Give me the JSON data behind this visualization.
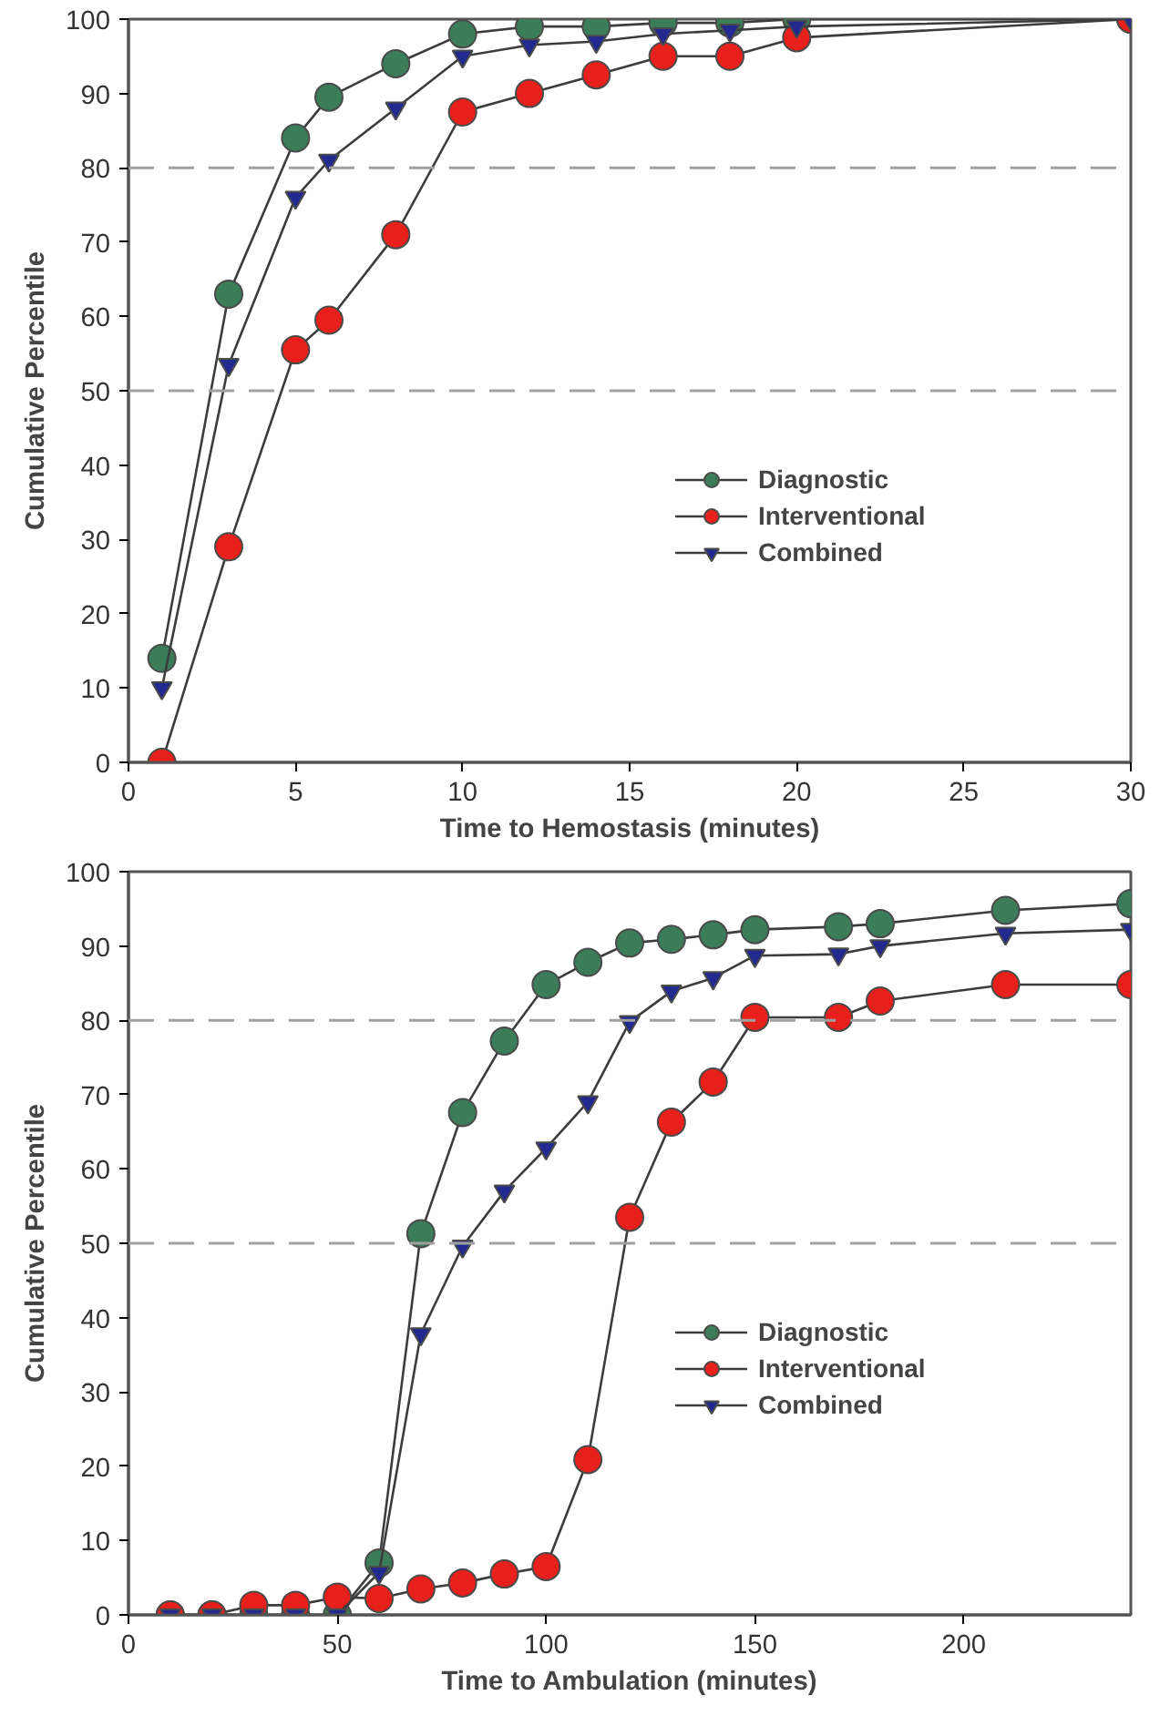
{
  "chart_data": [
    {
      "type": "line",
      "xlabel": "Time to Hemostasis (minutes)",
      "ylabel": "Cumulative Percentile",
      "x": [
        1,
        3,
        5,
        6,
        8,
        10,
        12,
        14,
        16,
        18,
        20,
        30
      ],
      "series": [
        {
          "name": "Diagnostic",
          "color": "#3b7d58",
          "marker": "circle",
          "values": [
            14,
            63,
            84,
            89.5,
            94,
            98,
            99,
            99,
            99.5,
            99.5,
            100,
            100
          ]
        },
        {
          "name": "Interventional",
          "color": "#e8201c",
          "marker": "circle",
          "values": [
            0,
            29,
            55.5,
            59.5,
            71,
            87.5,
            90,
            92.5,
            95,
            95,
            97.5,
            100
          ]
        },
        {
          "name": "Combined",
          "color": "#232a8f",
          "marker": "triangle_down",
          "values": [
            10,
            53.5,
            76,
            81,
            88,
            95,
            96.5,
            97,
            98,
            98.5,
            99,
            100
          ]
        }
      ],
      "xlim": [
        0,
        30
      ],
      "xticks": [
        0,
        5,
        10,
        15,
        20,
        25,
        30
      ],
      "ylim": [
        0,
        100
      ],
      "yticks": [
        0,
        10,
        20,
        30,
        40,
        50,
        60,
        70,
        80,
        90,
        100
      ],
      "ref_lines": [
        {
          "axis": "y",
          "value": 50,
          "color": "#a0a0a0",
          "line_style": "dashed"
        },
        {
          "axis": "y",
          "value": 80,
          "color": "#a0a0a0",
          "line_style": "dashed"
        }
      ],
      "grid": false,
      "legend": "right",
      "line_style": "solid"
    },
    {
      "type": "line",
      "xlabel": "Time to Ambulation (minutes)",
      "ylabel": "Cumulative Percentile",
      "x": [
        10,
        20,
        30,
        40,
        50,
        60,
        70,
        80,
        90,
        100,
        110,
        120,
        130,
        140,
        150,
        170,
        180,
        210,
        240
      ],
      "series": [
        {
          "name": "Diagnostic",
          "color": "#3b7d58",
          "marker": "circle",
          "values": [
            0,
            0,
            0,
            0,
            0,
            7,
            51.3,
            67.6,
            77.2,
            84.8,
            87.8,
            90.4,
            90.9,
            91.5,
            92.2,
            92.6,
            93,
            94.8,
            95.7
          ]
        },
        {
          "name": "Interventional",
          "color": "#e8201c",
          "marker": "circle",
          "values": [
            0,
            0,
            1.3,
            1.3,
            2.4,
            2.2,
            3.5,
            4.3,
            5.5,
            6.5,
            20.9,
            53.5,
            66.3,
            71.7,
            80.4,
            80.4,
            82.6,
            84.8,
            84.8
          ]
        },
        {
          "name": "Combined",
          "color": "#232a8f",
          "marker": "triangle_down",
          "values": [
            0,
            0,
            0,
            0,
            0,
            5.7,
            37.8,
            49.6,
            57,
            62.8,
            69,
            79.8,
            83.9,
            85.7,
            88.7,
            88.9,
            90,
            91.7,
            92.2
          ]
        }
      ],
      "xlim": [
        0,
        240
      ],
      "xticks": [
        0,
        50,
        100,
        150,
        200
      ],
      "ylim": [
        0,
        100
      ],
      "yticks": [
        0,
        10,
        20,
        30,
        40,
        50,
        60,
        70,
        80,
        90,
        100
      ],
      "ref_lines": [
        {
          "axis": "y",
          "value": 50,
          "color": "#a0a0a0",
          "line_style": "dashed"
        },
        {
          "axis": "y",
          "value": 80,
          "color": "#a0a0a0",
          "line_style": "dashed"
        }
      ],
      "grid": false,
      "legend": "right",
      "line_style": "solid"
    }
  ]
}
